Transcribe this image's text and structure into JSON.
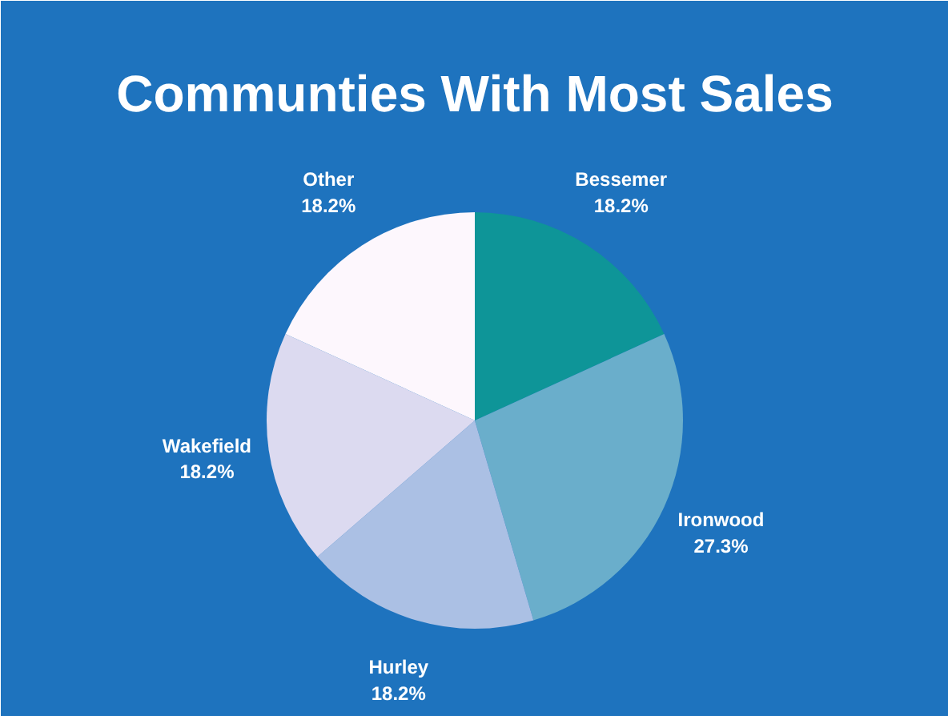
{
  "chart_data": {
    "type": "pie",
    "title": "Communties With Most Sales",
    "categories": [
      "Bessemer",
      "Ironwood",
      "Hurley",
      "Wakefield",
      "Other"
    ],
    "values": [
      18.2,
      27.3,
      18.2,
      18.2,
      18.2
    ],
    "value_labels": [
      "18.2%",
      "27.3%",
      "18.2%",
      "18.2%",
      "18.2%"
    ],
    "colors": [
      "#0e9598",
      "#6aaecb",
      "#abc0e4",
      "#dcdaf0",
      "#fdf7fd"
    ]
  }
}
